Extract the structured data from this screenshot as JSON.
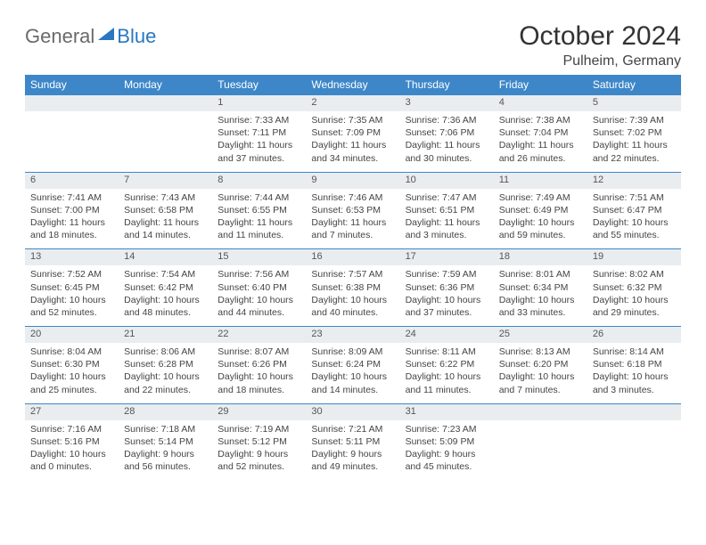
{
  "logo": {
    "word1": "General",
    "word2": "Blue"
  },
  "title": "October 2024",
  "location": "Pulheim, Germany",
  "colors": {
    "brand": "#3d87c9",
    "logo_blue": "#2a77c0",
    "daynum_bg": "#e9edf0"
  },
  "weekdays": [
    "Sunday",
    "Monday",
    "Tuesday",
    "Wednesday",
    "Thursday",
    "Friday",
    "Saturday"
  ],
  "days": [
    {
      "n": "",
      "sunrise": "",
      "sunset": "",
      "daylight": ""
    },
    {
      "n": "",
      "sunrise": "",
      "sunset": "",
      "daylight": ""
    },
    {
      "n": "1",
      "sunrise": "Sunrise: 7:33 AM",
      "sunset": "Sunset: 7:11 PM",
      "daylight": "Daylight: 11 hours and 37 minutes."
    },
    {
      "n": "2",
      "sunrise": "Sunrise: 7:35 AM",
      "sunset": "Sunset: 7:09 PM",
      "daylight": "Daylight: 11 hours and 34 minutes."
    },
    {
      "n": "3",
      "sunrise": "Sunrise: 7:36 AM",
      "sunset": "Sunset: 7:06 PM",
      "daylight": "Daylight: 11 hours and 30 minutes."
    },
    {
      "n": "4",
      "sunrise": "Sunrise: 7:38 AM",
      "sunset": "Sunset: 7:04 PM",
      "daylight": "Daylight: 11 hours and 26 minutes."
    },
    {
      "n": "5",
      "sunrise": "Sunrise: 7:39 AM",
      "sunset": "Sunset: 7:02 PM",
      "daylight": "Daylight: 11 hours and 22 minutes."
    },
    {
      "n": "6",
      "sunrise": "Sunrise: 7:41 AM",
      "sunset": "Sunset: 7:00 PM",
      "daylight": "Daylight: 11 hours and 18 minutes."
    },
    {
      "n": "7",
      "sunrise": "Sunrise: 7:43 AM",
      "sunset": "Sunset: 6:58 PM",
      "daylight": "Daylight: 11 hours and 14 minutes."
    },
    {
      "n": "8",
      "sunrise": "Sunrise: 7:44 AM",
      "sunset": "Sunset: 6:55 PM",
      "daylight": "Daylight: 11 hours and 11 minutes."
    },
    {
      "n": "9",
      "sunrise": "Sunrise: 7:46 AM",
      "sunset": "Sunset: 6:53 PM",
      "daylight": "Daylight: 11 hours and 7 minutes."
    },
    {
      "n": "10",
      "sunrise": "Sunrise: 7:47 AM",
      "sunset": "Sunset: 6:51 PM",
      "daylight": "Daylight: 11 hours and 3 minutes."
    },
    {
      "n": "11",
      "sunrise": "Sunrise: 7:49 AM",
      "sunset": "Sunset: 6:49 PM",
      "daylight": "Daylight: 10 hours and 59 minutes."
    },
    {
      "n": "12",
      "sunrise": "Sunrise: 7:51 AM",
      "sunset": "Sunset: 6:47 PM",
      "daylight": "Daylight: 10 hours and 55 minutes."
    },
    {
      "n": "13",
      "sunrise": "Sunrise: 7:52 AM",
      "sunset": "Sunset: 6:45 PM",
      "daylight": "Daylight: 10 hours and 52 minutes."
    },
    {
      "n": "14",
      "sunrise": "Sunrise: 7:54 AM",
      "sunset": "Sunset: 6:42 PM",
      "daylight": "Daylight: 10 hours and 48 minutes."
    },
    {
      "n": "15",
      "sunrise": "Sunrise: 7:56 AM",
      "sunset": "Sunset: 6:40 PM",
      "daylight": "Daylight: 10 hours and 44 minutes."
    },
    {
      "n": "16",
      "sunrise": "Sunrise: 7:57 AM",
      "sunset": "Sunset: 6:38 PM",
      "daylight": "Daylight: 10 hours and 40 minutes."
    },
    {
      "n": "17",
      "sunrise": "Sunrise: 7:59 AM",
      "sunset": "Sunset: 6:36 PM",
      "daylight": "Daylight: 10 hours and 37 minutes."
    },
    {
      "n": "18",
      "sunrise": "Sunrise: 8:01 AM",
      "sunset": "Sunset: 6:34 PM",
      "daylight": "Daylight: 10 hours and 33 minutes."
    },
    {
      "n": "19",
      "sunrise": "Sunrise: 8:02 AM",
      "sunset": "Sunset: 6:32 PM",
      "daylight": "Daylight: 10 hours and 29 minutes."
    },
    {
      "n": "20",
      "sunrise": "Sunrise: 8:04 AM",
      "sunset": "Sunset: 6:30 PM",
      "daylight": "Daylight: 10 hours and 25 minutes."
    },
    {
      "n": "21",
      "sunrise": "Sunrise: 8:06 AM",
      "sunset": "Sunset: 6:28 PM",
      "daylight": "Daylight: 10 hours and 22 minutes."
    },
    {
      "n": "22",
      "sunrise": "Sunrise: 8:07 AM",
      "sunset": "Sunset: 6:26 PM",
      "daylight": "Daylight: 10 hours and 18 minutes."
    },
    {
      "n": "23",
      "sunrise": "Sunrise: 8:09 AM",
      "sunset": "Sunset: 6:24 PM",
      "daylight": "Daylight: 10 hours and 14 minutes."
    },
    {
      "n": "24",
      "sunrise": "Sunrise: 8:11 AM",
      "sunset": "Sunset: 6:22 PM",
      "daylight": "Daylight: 10 hours and 11 minutes."
    },
    {
      "n": "25",
      "sunrise": "Sunrise: 8:13 AM",
      "sunset": "Sunset: 6:20 PM",
      "daylight": "Daylight: 10 hours and 7 minutes."
    },
    {
      "n": "26",
      "sunrise": "Sunrise: 8:14 AM",
      "sunset": "Sunset: 6:18 PM",
      "daylight": "Daylight: 10 hours and 3 minutes."
    },
    {
      "n": "27",
      "sunrise": "Sunrise: 7:16 AM",
      "sunset": "Sunset: 5:16 PM",
      "daylight": "Daylight: 10 hours and 0 minutes."
    },
    {
      "n": "28",
      "sunrise": "Sunrise: 7:18 AM",
      "sunset": "Sunset: 5:14 PM",
      "daylight": "Daylight: 9 hours and 56 minutes."
    },
    {
      "n": "29",
      "sunrise": "Sunrise: 7:19 AM",
      "sunset": "Sunset: 5:12 PM",
      "daylight": "Daylight: 9 hours and 52 minutes."
    },
    {
      "n": "30",
      "sunrise": "Sunrise: 7:21 AM",
      "sunset": "Sunset: 5:11 PM",
      "daylight": "Daylight: 9 hours and 49 minutes."
    },
    {
      "n": "31",
      "sunrise": "Sunrise: 7:23 AM",
      "sunset": "Sunset: 5:09 PM",
      "daylight": "Daylight: 9 hours and 45 minutes."
    },
    {
      "n": "",
      "sunrise": "",
      "sunset": "",
      "daylight": ""
    },
    {
      "n": "",
      "sunrise": "",
      "sunset": "",
      "daylight": ""
    }
  ]
}
